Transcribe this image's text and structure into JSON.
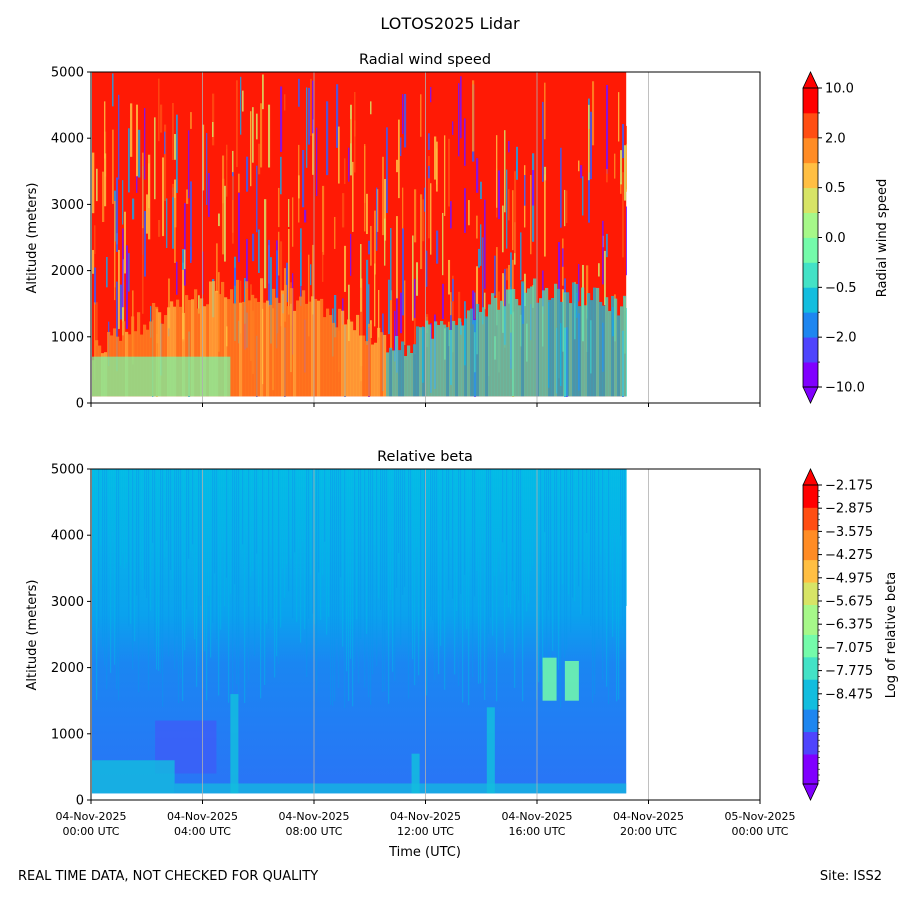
{
  "figure": {
    "title": "LOTOS2025 Lidar",
    "footer_left": "REAL TIME DATA, NOT CHECKED FOR QUALITY",
    "footer_right": "Site: ISS2"
  },
  "chart_data": [
    {
      "type": "heatmap",
      "title": "Radial wind speed",
      "xlabel": "",
      "ylabel": "Altitude (meters)",
      "ylim": [
        0,
        5000
      ],
      "yticks": [
        0,
        1000,
        2000,
        3000,
        4000,
        5000
      ],
      "xlim_hours": [
        0,
        24
      ],
      "data_extent_hours": [
        0,
        19.2
      ],
      "data_extent_altitude": [
        100,
        5000
      ],
      "xticks_hours": [
        0,
        4,
        8,
        12,
        16,
        20,
        24
      ],
      "xtick_labels_shown": false,
      "colorbar": {
        "label": "Radial wind speed",
        "extend": "both",
        "levels": 12,
        "tick_labels": [
          "10.0",
          "2.0",
          "0.5",
          "0.0",
          "−0.5",
          "−2.0",
          "−10.0"
        ],
        "colors": [
          "#8000ff",
          "#4f44fd",
          "#1e86f0",
          "#13bdde",
          "#43e2c6",
          "#74fbaa",
          "#a6f889",
          "#d7e466",
          "#ffbf43",
          "#ff8c25",
          "#ff4e13",
          "#ff0000"
        ]
      }
    },
    {
      "type": "heatmap",
      "title": "Relative beta",
      "xlabel": "Time (UTC)",
      "ylabel": "Altitude (meters)",
      "ylim": [
        0,
        5000
      ],
      "yticks": [
        0,
        1000,
        2000,
        3000,
        4000,
        5000
      ],
      "xlim_hours": [
        0,
        24
      ],
      "data_extent_hours": [
        0,
        19.2
      ],
      "data_extent_altitude": [
        100,
        5000
      ],
      "xticks_hours": [
        0,
        4,
        8,
        12,
        16,
        20,
        24
      ],
      "xtick_labels": [
        [
          "04-Nov-2025",
          "00:00 UTC"
        ],
        [
          "04-Nov-2025",
          "04:00 UTC"
        ],
        [
          "04-Nov-2025",
          "08:00 UTC"
        ],
        [
          "04-Nov-2025",
          "12:00 UTC"
        ],
        [
          "04-Nov-2025",
          "16:00 UTC"
        ],
        [
          "04-Nov-2025",
          "20:00 UTC"
        ],
        [
          "05-Nov-2025",
          "00:00 UTC"
        ]
      ],
      "colorbar": {
        "label": "Log of relative beta",
        "extend": "both",
        "levels": 40,
        "tick_labels": [
          "−2.175",
          "−2.875",
          "−3.575",
          "−4.275",
          "−4.975",
          "−5.675",
          "−6.375",
          "−7.075",
          "−7.775",
          "−8.475"
        ],
        "colors": [
          "#8000ff",
          "#4f44fd",
          "#1e86f0",
          "#13bdde",
          "#43e2c6",
          "#74fbaa",
          "#a6f889",
          "#d7e466",
          "#ffbf43",
          "#ff8c25",
          "#ff4e13",
          "#ff0000"
        ]
      }
    }
  ]
}
